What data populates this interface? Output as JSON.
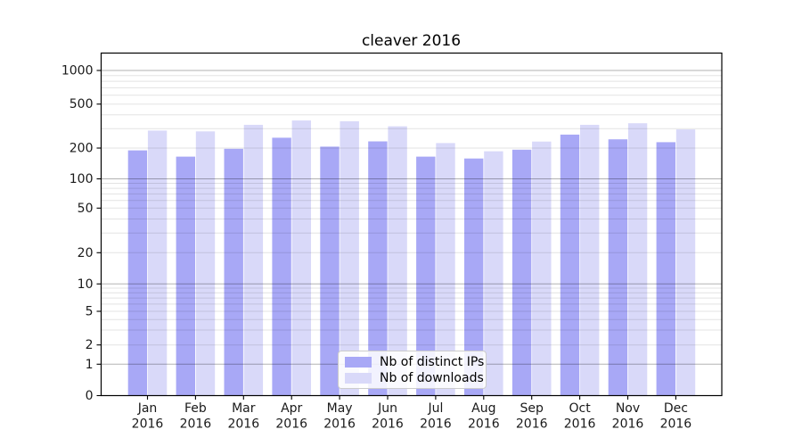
{
  "title": "cleaver 2016",
  "legend": {
    "items": [
      {
        "label": "Nb of distinct IPs",
        "color": "#a8a8f6"
      },
      {
        "label": "Nb of downloads",
        "color": "#d9d9f9"
      }
    ]
  },
  "chart_data": {
    "type": "bar",
    "title": "cleaver 2016",
    "categories": [
      "Jan 2016",
      "Feb 2016",
      "Mar 2016",
      "Apr 2016",
      "May 2016",
      "Jun 2016",
      "Jul 2016",
      "Aug 2016",
      "Sep 2016",
      "Oct 2016",
      "Nov 2016",
      "Dec 2016"
    ],
    "series": [
      {
        "name": "Nb of distinct IPs",
        "color": "#a8a8f6",
        "values": [
          190,
          165,
          197,
          248,
          206,
          230,
          165,
          158,
          193,
          265,
          240,
          226
        ]
      },
      {
        "name": "Nb of downloads",
        "color": "#d9d9f9",
        "values": [
          288,
          283,
          325,
          355,
          350,
          315,
          222,
          186,
          229,
          325,
          335,
          295
        ]
      }
    ],
    "xlabel": "",
    "ylabel": "",
    "yscale": "symlog",
    "y_ticks": [
      0,
      1,
      2,
      5,
      10,
      20,
      50,
      100,
      200,
      500,
      1000
    ],
    "ylim": [
      0,
      1430
    ],
    "grid": true,
    "grid_major_values": [
      1,
      10,
      100,
      1000
    ],
    "legend_position": "lower center",
    "colors": {
      "grid_major": "#b0b0b0",
      "grid_minor": "#e0e0e0",
      "axis": "#000000",
      "tick_label": "#1a1a1a"
    }
  }
}
